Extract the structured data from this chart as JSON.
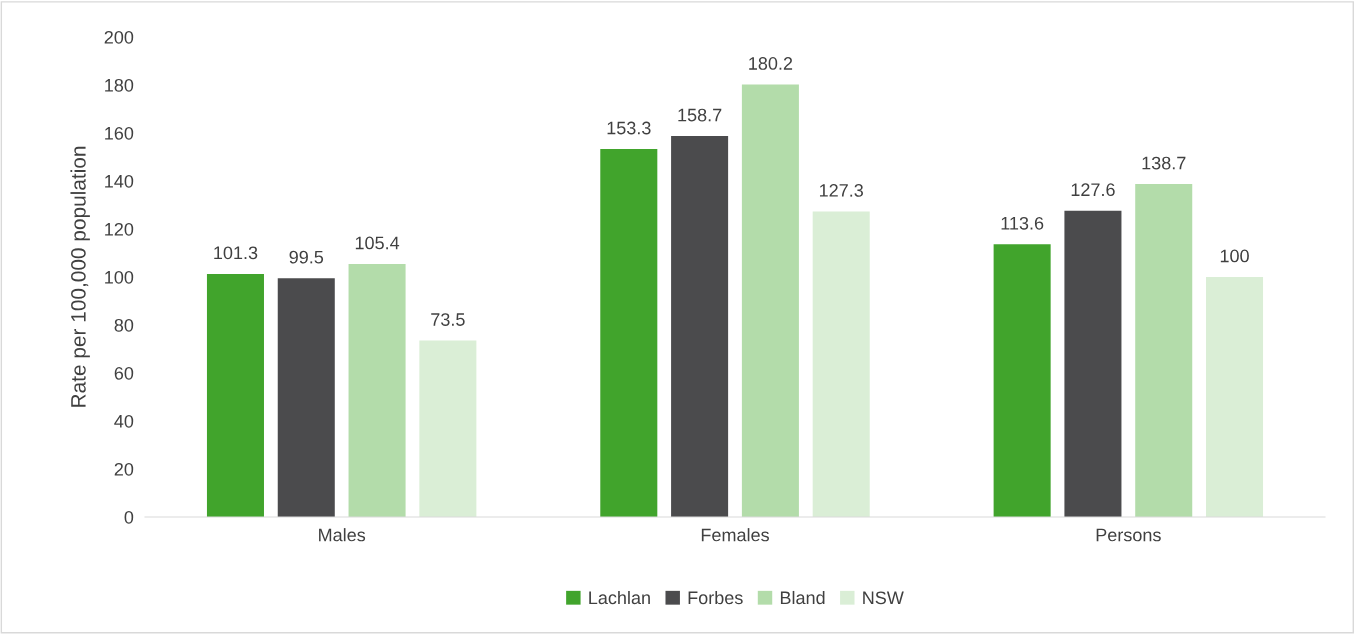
{
  "chart_data": {
    "type": "bar",
    "ylabel": "Rate per 100,000 population",
    "categories": [
      "Males",
      "Females",
      "Persons"
    ],
    "series": [
      {
        "name": "Lachlan",
        "color": "#41a42c",
        "values": [
          101.3,
          153.3,
          113.6
        ]
      },
      {
        "name": "Forbes",
        "color": "#4b4b4d",
        "values": [
          99.5,
          158.7,
          127.6
        ]
      },
      {
        "name": "Bland",
        "color": "#b3dcaa",
        "values": [
          105.4,
          180.2,
          138.7
        ]
      },
      {
        "name": "NSW",
        "color": "#daeed6",
        "values": [
          73.5,
          127.3,
          100
        ]
      }
    ],
    "ylim": [
      0,
      200
    ],
    "yticks": [
      0,
      20,
      40,
      60,
      80,
      100,
      120,
      140,
      160,
      180,
      200
    ],
    "grid": false,
    "legend": "bottom",
    "data_labels": true
  }
}
